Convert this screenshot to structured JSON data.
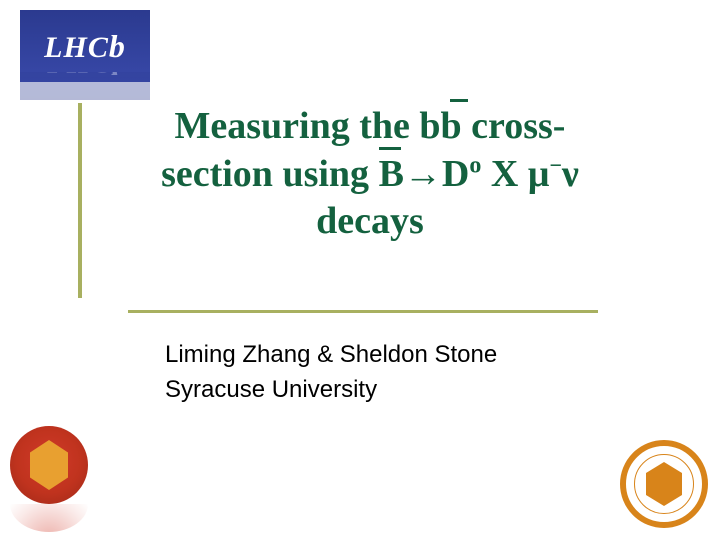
{
  "logo": {
    "text_upper": "LHC",
    "text_lower": "b"
  },
  "title": {
    "line1_pre": "Measuring the b",
    "line1_bbar": "b",
    "line1_post": " cross-",
    "line2_pre": "section using ",
    "line2_bbar": "B",
    "line2_arrow": "→",
    "line2_d": "D",
    "line2_sup_o": "o",
    "line2_x": " X ",
    "line2_mu": "μ",
    "line2_minus": "−",
    "line2_nu": "ν",
    "line3": "decays"
  },
  "authors": {
    "line1": "Liming Zhang & Sheldon Stone",
    "line2": "Syracuse University"
  },
  "colors": {
    "title_color": "#14613f",
    "accent_bar": "#a8b060",
    "logo_bg": "#2b3a8f",
    "seal_left": "#d13a2a",
    "seal_right_ring": "#d8841a"
  }
}
